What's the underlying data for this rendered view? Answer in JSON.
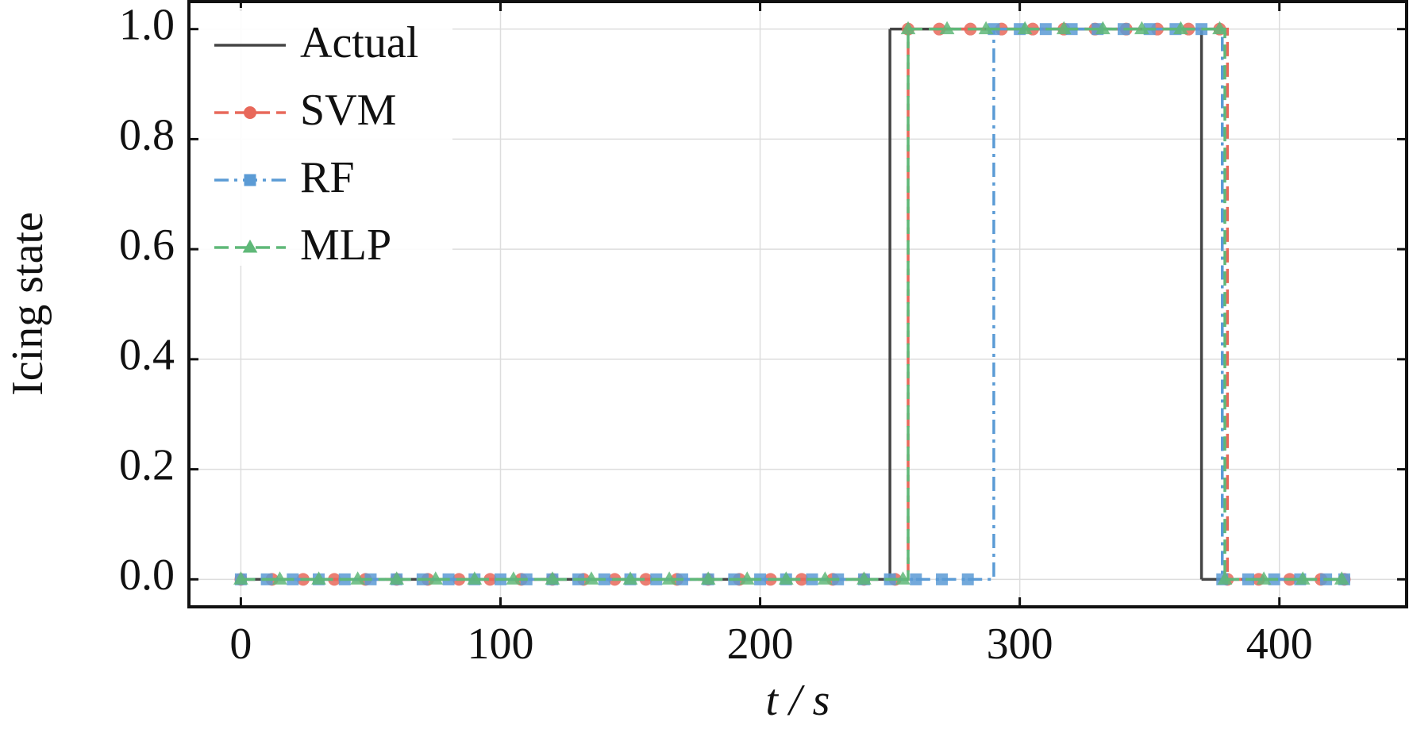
{
  "chart_data": {
    "type": "step",
    "xlabel": "t / s",
    "ylabel": "Icing state",
    "xlim": [
      -20,
      449
    ],
    "ylim": [
      -0.05,
      1.05
    ],
    "xticks": [
      0,
      100,
      200,
      300,
      400
    ],
    "yticks": [
      {
        "value": 0,
        "label": "0.0"
      },
      {
        "value": 0.2,
        "label": "0.2"
      },
      {
        "value": 0.4,
        "label": "0.4"
      },
      {
        "value": 0.6,
        "label": "0.6"
      },
      {
        "value": 0.8,
        "label": "0.8"
      },
      {
        "value": 1,
        "label": "1.0"
      }
    ],
    "grid": true,
    "legend": "upper left",
    "series": [
      {
        "name": "Actual",
        "color": "#454545",
        "dash": "solid",
        "marker": "none",
        "x": [
          0,
          250,
          370,
          425
        ],
        "values": [
          0,
          1,
          0,
          0
        ]
      },
      {
        "name": "SVM",
        "color": "#e8685a",
        "dash": "dashed",
        "marker": "circle",
        "x": [
          0,
          12,
          24,
          36,
          48,
          60,
          72,
          84,
          96,
          108,
          120,
          132,
          144,
          156,
          168,
          180,
          192,
          204,
          216,
          228,
          240,
          252,
          257,
          269,
          281,
          293,
          305,
          317,
          329,
          341,
          353,
          365,
          377,
          380,
          392,
          404,
          416,
          425
        ],
        "values": [
          0,
          0,
          0,
          0,
          0,
          0,
          0,
          0,
          0,
          0,
          0,
          0,
          0,
          0,
          0,
          0,
          0,
          0,
          0,
          0,
          0,
          0,
          1,
          1,
          1,
          1,
          1,
          1,
          1,
          1,
          1,
          1,
          1,
          0,
          0,
          0,
          0,
          0
        ]
      },
      {
        "name": "RF",
        "color": "#5b9bd5",
        "dash": "dashdot",
        "marker": "square",
        "x": [
          0,
          10,
          20,
          30,
          40,
          50,
          60,
          70,
          80,
          90,
          100,
          110,
          120,
          130,
          140,
          150,
          160,
          170,
          180,
          190,
          200,
          210,
          220,
          230,
          240,
          250,
          260,
          270,
          280,
          290,
          300,
          310,
          320,
          330,
          340,
          350,
          360,
          370,
          378,
          388,
          398,
          408,
          418,
          425
        ],
        "values": [
          0,
          0,
          0,
          0,
          0,
          0,
          0,
          0,
          0,
          0,
          0,
          0,
          0,
          0,
          0,
          0,
          0,
          0,
          0,
          0,
          0,
          0,
          0,
          0,
          0,
          0,
          0,
          0,
          0,
          1,
          1,
          1,
          1,
          1,
          1,
          1,
          1,
          1,
          0,
          0,
          0,
          0,
          0,
          0
        ]
      },
      {
        "name": "MLP",
        "color": "#5fb878",
        "dash": "dashed",
        "marker": "triangle",
        "x": [
          0,
          15,
          30,
          45,
          60,
          75,
          90,
          105,
          120,
          135,
          150,
          165,
          180,
          195,
          210,
          225,
          240,
          255,
          257,
          272,
          287,
          302,
          317,
          332,
          347,
          362,
          377,
          379,
          394,
          409,
          424
        ],
        "values": [
          0,
          0,
          0,
          0,
          0,
          0,
          0,
          0,
          0,
          0,
          0,
          0,
          0,
          0,
          0,
          0,
          0,
          0,
          1,
          1,
          1,
          1,
          1,
          1,
          1,
          1,
          1,
          0,
          0,
          0,
          0
        ]
      }
    ]
  }
}
